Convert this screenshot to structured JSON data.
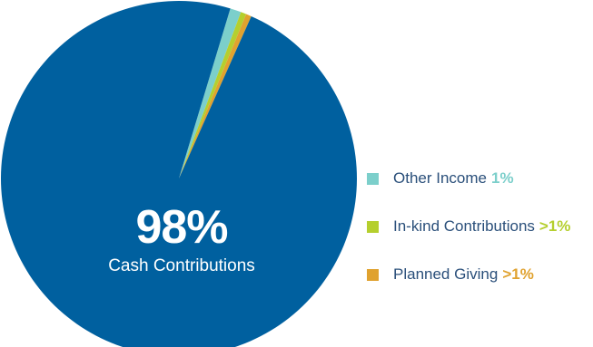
{
  "chart_data": {
    "type": "pie",
    "title": "",
    "slices": [
      {
        "label": "Cash Contributions",
        "value": 98,
        "display": "98%",
        "color": "#00609f"
      },
      {
        "label": "Other Income",
        "value": 1,
        "display": "1%",
        "color": "#7ccfcb"
      },
      {
        "label": "In-kind Contributions",
        "value": 0.5,
        "display": ">1%",
        "color": "#b5cf2e"
      },
      {
        "label": "Planned Giving",
        "value": 0.5,
        "display": ">1%",
        "color": "#e0a22f"
      }
    ],
    "legend_position": "right"
  },
  "center": {
    "pct": "98%",
    "label": "Cash Contributions"
  },
  "legend": [
    {
      "label": "Other Income",
      "pct": "1%",
      "color": "#7ccfcb"
    },
    {
      "label": "In-kind Contributions",
      "pct": ">1%",
      "color": "#b5cf2e"
    },
    {
      "label": "Planned Giving",
      "pct": ">1%",
      "color": "#e0a22f"
    }
  ]
}
